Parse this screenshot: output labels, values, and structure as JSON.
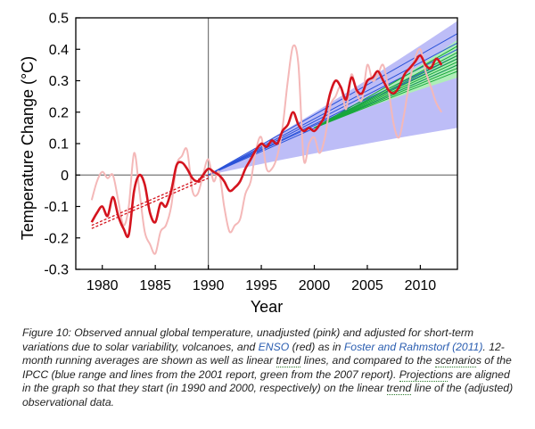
{
  "chart_data": {
    "type": "line",
    "xlabel": "Year",
    "ylabel": "Temperature Change (°C)",
    "xlim": [
      1977.5,
      2013.5
    ],
    "ylim": [
      -0.3,
      0.5
    ],
    "xticks": [
      1980,
      1985,
      1990,
      1995,
      2000,
      2005,
      2010
    ],
    "yticks": [
      -0.3,
      -0.2,
      -0.1,
      0,
      0.1,
      0.2,
      0.3,
      0.4,
      0.5
    ],
    "reference_lines": {
      "vertical_x": 1990,
      "horizontal_y": 0
    },
    "grid": false,
    "legend": "none",
    "colors": {
      "unadjusted": "#f4b8b8",
      "adjusted": "#d4141e",
      "ipcc_2001_range": "#b9b9f7",
      "ipcc_2007_range": "#aef0b4",
      "ipcc_2001_lines": "#2a52d8",
      "ipcc_2007_lines": "#17a83a"
    },
    "series": [
      {
        "key": "unadjusted",
        "x": [
          1979.0,
          1979.5,
          1980.0,
          1980.5,
          1981.0,
          1981.5,
          1982.0,
          1982.5,
          1983.0,
          1983.5,
          1984.0,
          1984.5,
          1985.0,
          1985.5,
          1986.0,
          1986.5,
          1987.0,
          1987.5,
          1988.0,
          1988.5,
          1989.0,
          1989.5,
          1990.0,
          1990.5,
          1991.0,
          1991.5,
          1992.0,
          1992.5,
          1993.0,
          1993.5,
          1994.0,
          1994.5,
          1995.0,
          1995.5,
          1996.0,
          1996.5,
          1997.0,
          1997.5,
          1998.0,
          1998.5,
          1999.0,
          1999.5,
          2000.0,
          2000.5,
          2001.0,
          2001.5,
          2002.0,
          2002.5,
          2003.0,
          2003.5,
          2004.0,
          2004.5,
          2005.0,
          2005.5,
          2006.0,
          2006.5,
          2007.0,
          2007.5,
          2008.0,
          2008.5,
          2009.0,
          2009.5,
          2010.0,
          2010.5,
          2011.0,
          2011.5,
          2012.0
        ],
        "y": [
          -0.08,
          -0.02,
          0.01,
          -0.01,
          0.0,
          -0.08,
          -0.16,
          -0.1,
          0.07,
          -0.05,
          -0.18,
          -0.22,
          -0.25,
          -0.18,
          -0.16,
          -0.1,
          0.03,
          0.06,
          0.08,
          -0.05,
          -0.06,
          0.0,
          0.05,
          -0.02,
          0.01,
          -0.1,
          -0.18,
          -0.16,
          -0.14,
          -0.06,
          -0.02,
          0.08,
          0.12,
          0.02,
          0.02,
          0.06,
          0.15,
          0.3,
          0.41,
          0.35,
          0.05,
          0.1,
          0.12,
          0.07,
          0.12,
          0.22,
          0.25,
          0.28,
          0.21,
          0.32,
          0.26,
          0.24,
          0.35,
          0.3,
          0.32,
          0.35,
          0.27,
          0.16,
          0.12,
          0.2,
          0.3,
          0.37,
          0.4,
          0.33,
          0.28,
          0.23,
          0.2
        ]
      },
      {
        "key": "adjusted",
        "x": [
          1979.0,
          1979.5,
          1980.0,
          1980.5,
          1981.0,
          1981.5,
          1982.0,
          1982.5,
          1983.0,
          1983.5,
          1984.0,
          1984.5,
          1985.0,
          1985.5,
          1986.0,
          1986.5,
          1987.0,
          1987.5,
          1988.0,
          1988.5,
          1989.0,
          1989.5,
          1990.0,
          1990.5,
          1991.0,
          1991.5,
          1992.0,
          1992.5,
          1993.0,
          1993.5,
          1994.0,
          1994.5,
          1995.0,
          1995.5,
          1996.0,
          1996.5,
          1997.0,
          1997.5,
          1998.0,
          1998.5,
          1999.0,
          1999.5,
          2000.0,
          2000.5,
          2001.0,
          2001.5,
          2002.0,
          2002.5,
          2003.0,
          2003.5,
          2004.0,
          2004.5,
          2005.0,
          2005.5,
          2006.0,
          2006.5,
          2007.0,
          2007.5,
          2008.0,
          2008.5,
          2009.0,
          2009.5,
          2010.0,
          2010.5,
          2011.0,
          2011.5,
          2012.0
        ],
        "y": [
          -0.15,
          -0.12,
          -0.1,
          -0.13,
          -0.07,
          -0.13,
          -0.17,
          -0.19,
          -0.05,
          0.0,
          -0.03,
          -0.12,
          -0.15,
          -0.09,
          -0.1,
          -0.05,
          0.03,
          0.04,
          0.02,
          -0.01,
          -0.02,
          0.0,
          0.02,
          0.01,
          0.0,
          -0.02,
          -0.05,
          -0.04,
          -0.02,
          0.02,
          0.05,
          0.08,
          0.1,
          0.09,
          0.11,
          0.1,
          0.14,
          0.16,
          0.2,
          0.16,
          0.14,
          0.15,
          0.14,
          0.16,
          0.19,
          0.26,
          0.3,
          0.28,
          0.24,
          0.31,
          0.27,
          0.26,
          0.3,
          0.31,
          0.33,
          0.3,
          0.27,
          0.26,
          0.28,
          0.32,
          0.34,
          0.36,
          0.38,
          0.35,
          0.34,
          0.37,
          0.35
        ]
      }
    ],
    "trend_lines": [
      {
        "key": "trend_adjusted",
        "x": [
          1979,
          1990
        ],
        "y": [
          -0.16,
          0.0
        ]
      },
      {
        "key": "trend_unadjusted",
        "x": [
          1979,
          1990
        ],
        "y": [
          -0.17,
          -0.01
        ]
      }
    ],
    "ipcc_2001_range": {
      "x": [
        1990,
        2013.5
      ],
      "upper": [
        0.0,
        0.49
      ],
      "lower": [
        0.0,
        0.15
      ]
    },
    "ipcc_2007_range": {
      "x": [
        2000,
        2013.5
      ],
      "upper": [
        0.15,
        0.43
      ],
      "lower": [
        0.15,
        0.31
      ]
    },
    "ipcc_2001_lines": {
      "x0": 1990,
      "y0": 0.0,
      "x1": 2013.5,
      "y1": [
        0.45,
        0.42,
        0.4,
        0.38,
        0.37,
        0.35
      ]
    },
    "ipcc_2007_lines": {
      "x0": 2000,
      "y0": 0.15,
      "x1": 2013.5,
      "y1": [
        0.41,
        0.39,
        0.38,
        0.37,
        0.36,
        0.35,
        0.34,
        0.33
      ]
    }
  },
  "caption": {
    "p1": "Figure 10: Observed annual global temperature, unadjusted (pink) and adjusted for short-term variations due to solar variability, volcanoes, and ",
    "enso": "ENSO",
    "p2": " (red) as in ",
    "ref": "Foster and Rahmstorf (2011)",
    "p3": ".  12-month running averages are shown as well as linear ",
    "trend1": "trend",
    "p4": " lines, and compared to the ",
    "scenario": "scenario",
    "p5": "s of the IPCC (blue range and lines from the 2001 report, green from the 2007 report).  ",
    "projection": "Projection",
    "p6": "s are aligned in the graph so that they start (in 1990 and 2000, respectively) on the linear ",
    "trend2": "trend",
    "p7": " line of the (adjusted) observational data."
  }
}
